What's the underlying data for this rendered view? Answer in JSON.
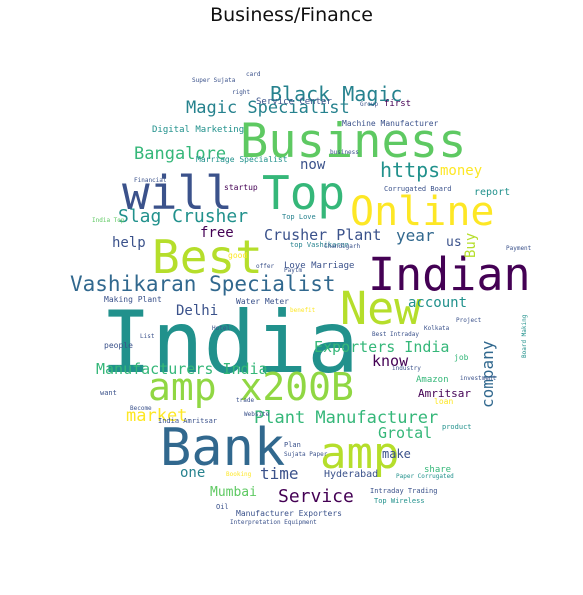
{
  "title": "Business/Finance",
  "colors": {
    "teal": "#21918c",
    "green": "#5ec962",
    "lime": "#b5de2b",
    "yellow": "#fde725",
    "purple": "#440154",
    "indigo": "#3b528b",
    "blue": "#31688e",
    "seafoam": "#35b779",
    "cyan": "#26828e",
    "light": "#90d743"
  },
  "words": [
    {
      "text": "India",
      "c": "teal"
    },
    {
      "text": "Indian",
      "c": "purple"
    },
    {
      "text": "Best",
      "c": "lime"
    },
    {
      "text": "Business",
      "c": "green"
    },
    {
      "text": "will",
      "c": "indigo"
    },
    {
      "text": "Top",
      "c": "seafoam"
    },
    {
      "text": "Online",
      "c": "yellow"
    },
    {
      "text": "New",
      "c": "lime"
    },
    {
      "text": "amp x200B",
      "c": "light"
    },
    {
      "text": "amp",
      "c": "lime"
    },
    {
      "text": "Bank",
      "c": "blue"
    },
    {
      "text": "Black Magic",
      "c": "cyan"
    },
    {
      "text": "Magic Specialist",
      "c": "cyan"
    },
    {
      "text": "Vashikaran Specialist",
      "c": "blue"
    },
    {
      "text": "Slag Crusher",
      "c": "teal"
    },
    {
      "text": "Bangalore",
      "c": "seafoam"
    },
    {
      "text": "https",
      "c": "teal"
    },
    {
      "text": "Crusher Plant",
      "c": "indigo"
    },
    {
      "text": "year",
      "c": "blue"
    },
    {
      "text": "Exporters India",
      "c": "seafoam"
    },
    {
      "text": "Manufacturers India",
      "c": "seafoam"
    },
    {
      "text": "Plant Manufacturer",
      "c": "seafoam"
    },
    {
      "text": "market",
      "c": "yellow"
    },
    {
      "text": "company",
      "c": "blue"
    },
    {
      "text": "Service",
      "c": "purple"
    },
    {
      "text": "Grotal",
      "c": "seafoam"
    },
    {
      "text": "Mumbai",
      "c": "green"
    },
    {
      "text": "time",
      "c": "indigo"
    },
    {
      "text": "free",
      "c": "purple"
    },
    {
      "text": "help",
      "c": "indigo"
    },
    {
      "text": "Delhi",
      "c": "indigo"
    },
    {
      "text": "money",
      "c": "yellow"
    },
    {
      "text": "now",
      "c": "indigo"
    },
    {
      "text": "account",
      "c": "teal"
    },
    {
      "text": "know",
      "c": "purple"
    },
    {
      "text": "make",
      "c": "indigo"
    },
    {
      "text": "one",
      "c": "cyan"
    },
    {
      "text": "Buy",
      "c": "lime"
    },
    {
      "text": "us",
      "c": "indigo"
    },
    {
      "text": "Hyderabad",
      "c": "indigo"
    },
    {
      "text": "Amritsar",
      "c": "purple"
    },
    {
      "text": "Amazon",
      "c": "seafoam"
    },
    {
      "text": "report",
      "c": "teal"
    },
    {
      "text": "share",
      "c": "seafoam"
    },
    {
      "text": "Digital Marketing",
      "c": "teal"
    },
    {
      "text": "Marriage Specialist",
      "c": "teal"
    },
    {
      "text": "Service Center",
      "c": "indigo"
    },
    {
      "text": "Machine Manufacturer",
      "c": "indigo"
    },
    {
      "text": "startup",
      "c": "purple"
    },
    {
      "text": "Love Marriage",
      "c": "indigo"
    },
    {
      "text": "Top Love",
      "c": "cyan"
    },
    {
      "text": "top Vashikaran",
      "c": "cyan"
    },
    {
      "text": "Making Plant",
      "c": "indigo"
    },
    {
      "text": "Water Meter",
      "c": "indigo"
    },
    {
      "text": "Manufacturer Exporters",
      "c": "indigo"
    },
    {
      "text": "Interpretation Equipment",
      "c": "indigo"
    },
    {
      "text": "Intraday Trading",
      "c": "indigo"
    },
    {
      "text": "Top Wireless",
      "c": "teal"
    },
    {
      "text": "India Amritsar",
      "c": "indigo"
    },
    {
      "text": "people",
      "c": "indigo"
    },
    {
      "text": "good",
      "c": "yellow"
    },
    {
      "text": "first",
      "c": "purple"
    },
    {
      "text": "Plan",
      "c": "indigo"
    },
    {
      "text": "Paytm",
      "c": "indigo"
    },
    {
      "text": "Chandigarh",
      "c": "indigo"
    },
    {
      "text": "Financial",
      "c": "indigo"
    },
    {
      "text": "Super Sujata",
      "c": "indigo"
    },
    {
      "text": "want",
      "c": "indigo"
    },
    {
      "text": "loan",
      "c": "yellow"
    },
    {
      "text": "product",
      "c": "teal"
    },
    {
      "text": "Project",
      "c": "indigo"
    },
    {
      "text": "Kolkata",
      "c": "indigo"
    },
    {
      "text": "Corrugated Board",
      "c": "indigo"
    },
    {
      "text": "job",
      "c": "seafoam"
    },
    {
      "text": "Payment",
      "c": "indigo"
    },
    {
      "text": "Board Making",
      "c": "teal"
    },
    {
      "text": "Best Intraday",
      "c": "indigo"
    },
    {
      "text": "trade",
      "c": "indigo"
    },
    {
      "text": "Website",
      "c": "indigo"
    },
    {
      "text": "Paper Corrugated",
      "c": "teal"
    },
    {
      "text": "right",
      "c": "indigo"
    },
    {
      "text": "card",
      "c": "indigo"
    },
    {
      "text": "Oil",
      "c": "indigo"
    },
    {
      "text": "Group",
      "c": "indigo"
    },
    {
      "text": "India Top",
      "c": "green"
    },
    {
      "text": "offer",
      "c": "indigo"
    },
    {
      "text": "Hotel",
      "c": "indigo"
    },
    {
      "text": "benefit",
      "c": "yellow"
    },
    {
      "text": "investment",
      "c": "indigo"
    },
    {
      "text": "industry",
      "c": "indigo"
    },
    {
      "text": "business",
      "c": "indigo"
    },
    {
      "text": "Become",
      "c": "indigo"
    },
    {
      "text": "Sujata Paper",
      "c": "indigo"
    },
    {
      "text": "Booking",
      "c": "yellow"
    },
    {
      "text": "List",
      "c": "indigo"
    }
  ]
}
